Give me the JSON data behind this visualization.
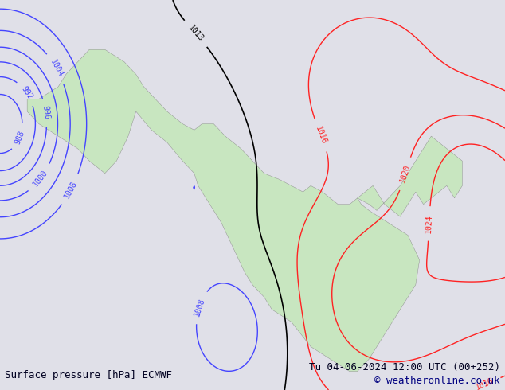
{
  "title_left": "Surface pressure [hPa] ECMWF",
  "title_right": "Tu 04-06-2024 12:00 UTC (00+252)",
  "copyright": "© weatheronline.co.uk",
  "background_color": "#e8e8e8",
  "land_color": "#c8e6c0",
  "ocean_color": "#e8e8e8",
  "mountain_color": "#b0b0b0",
  "isobar_levels_blue": [
    988,
    992,
    996,
    1000,
    1004,
    1008
  ],
  "isobar_levels_black": [
    1013
  ],
  "isobar_levels_red": [
    1016,
    1020,
    1024
  ],
  "blue_color": "#4444ff",
  "black_color": "#000000",
  "red_color": "#ff2222",
  "title_color": "#000080",
  "font_size_title": 9,
  "font_size_labels": 8
}
